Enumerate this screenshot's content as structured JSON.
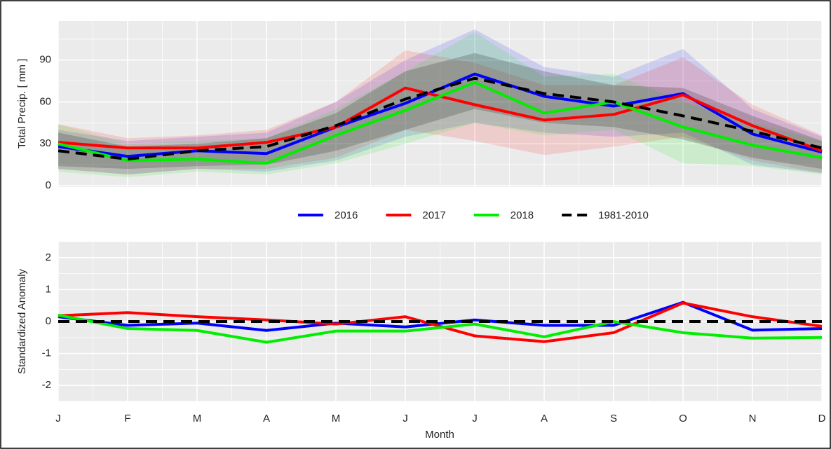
{
  "chart_data": [
    {
      "type": "line",
      "y_label": "Total Precip. [ mm ]",
      "ylim": [
        -1,
        118
      ],
      "yticks": [
        0,
        30,
        60,
        90
      ],
      "grid": true,
      "series": [
        {
          "name": "2016",
          "color": "#0000ff",
          "values": [
            28,
            21,
            25,
            23,
            42,
            59,
            80,
            64,
            57,
            66,
            37,
            24
          ],
          "lower": [
            12,
            8,
            12,
            10,
            18,
            35,
            45,
            38,
            35,
            38,
            15,
            9
          ],
          "upper": [
            40,
            32,
            35,
            38,
            60,
            90,
            112,
            85,
            78,
            98,
            55,
            35
          ]
        },
        {
          "name": "2017",
          "color": "#ff0000",
          "values": [
            31,
            27,
            27,
            31,
            42,
            70,
            58,
            47,
            51,
            65,
            43,
            25
          ],
          "lower": [
            12,
            8,
            12,
            12,
            20,
            40,
            32,
            22,
            28,
            35,
            18,
            9
          ],
          "upper": [
            44,
            34,
            36,
            40,
            60,
            97,
            88,
            72,
            72,
            92,
            58,
            36
          ]
        },
        {
          "name": "2018",
          "color": "#00ee00",
          "values": [
            30,
            18,
            19,
            16,
            36,
            54,
            74,
            52,
            60,
            42,
            29,
            20
          ],
          "lower": [
            10,
            6,
            10,
            8,
            16,
            30,
            45,
            36,
            40,
            16,
            14,
            8
          ],
          "upper": [
            44,
            30,
            32,
            34,
            55,
            82,
            110,
            78,
            80,
            60,
            45,
            32
          ]
        },
        {
          "name": "1981-2010",
          "color": "#000000",
          "dashed": true,
          "values": [
            25,
            19,
            25,
            28,
            43,
            62,
            77,
            66,
            60,
            50,
            39,
            27
          ],
          "lower": [
            14,
            12,
            14,
            15,
            25,
            40,
            55,
            45,
            42,
            33,
            20,
            12
          ],
          "upper": [
            38,
            28,
            30,
            34,
            52,
            82,
            95,
            82,
            72,
            70,
            50,
            32
          ]
        }
      ]
    },
    {
      "type": "line",
      "y_label": "Standardized Anomaly",
      "x_label": "Month",
      "categories": [
        "J",
        "F",
        "M",
        "A",
        "M",
        "J",
        "J",
        "A",
        "S",
        "O",
        "N",
        "D"
      ],
      "ylim": [
        -2.5,
        2.5
      ],
      "yticks": [
        -2,
        -1,
        0,
        1,
        2
      ],
      "grid": true,
      "series": [
        {
          "color": "#0000ff",
          "values": [
            0.15,
            -0.12,
            -0.05,
            -0.28,
            -0.05,
            -0.17,
            0.05,
            -0.12,
            -0.12,
            0.6,
            -0.27,
            -0.22
          ]
        },
        {
          "color": "#ff0000",
          "values": [
            0.18,
            0.28,
            0.15,
            0.05,
            -0.08,
            0.15,
            -0.45,
            -0.63,
            -0.35,
            0.58,
            0.15,
            -0.15
          ]
        },
        {
          "color": "#00ee00",
          "values": [
            0.2,
            -0.22,
            -0.28,
            -0.65,
            -0.3,
            -0.3,
            -0.08,
            -0.48,
            0.0,
            -0.35,
            -0.52,
            -0.5
          ]
        },
        {
          "color": "#000000",
          "dashed": true,
          "values": [
            0,
            0,
            0,
            0,
            0,
            0,
            0,
            0,
            0,
            0,
            0,
            0
          ]
        }
      ]
    }
  ]
}
